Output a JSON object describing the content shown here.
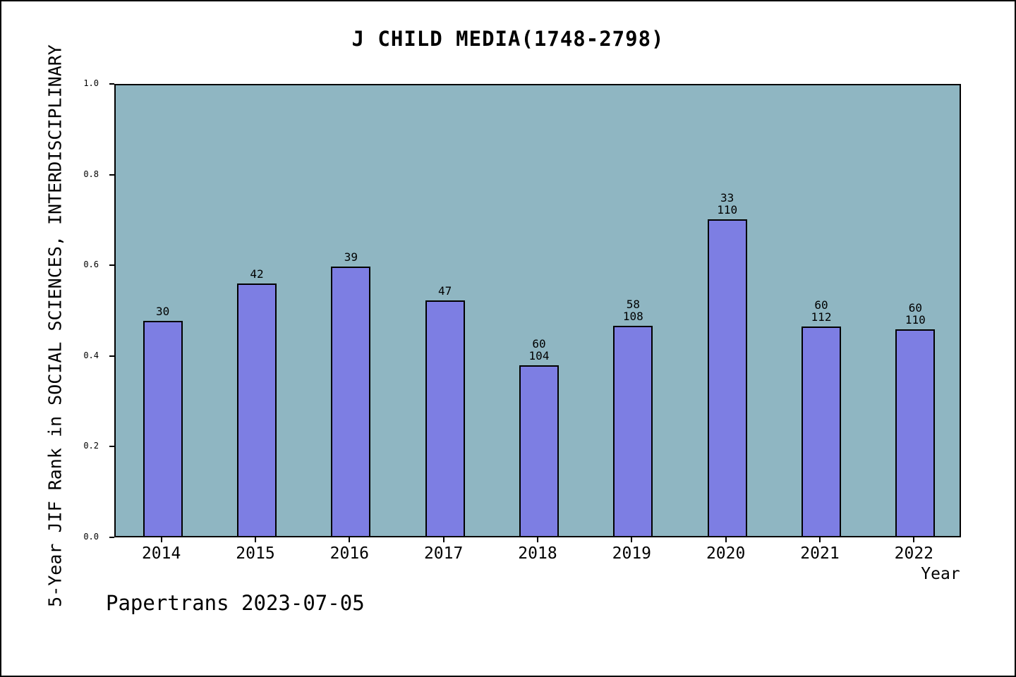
{
  "chart_data": {
    "type": "bar",
    "title": "J CHILD MEDIA(1748-2798)",
    "xlabel": "Year",
    "ylabel": "5-Year JIF Rank in SOCIAL SCIENCES, INTERDISCIPLINARY",
    "footer": "Papertrans 2023-07-05",
    "ylim": [
      0.0,
      1.0
    ],
    "yticks": [
      "0.0",
      "0.2",
      "0.4",
      "0.6",
      "0.8",
      "1.0"
    ],
    "grid": false,
    "legend": "none",
    "categories": [
      "2014",
      "2015",
      "2016",
      "2017",
      "2018",
      "2019",
      "2020",
      "2021",
      "2022"
    ],
    "series": [
      {
        "name": "5-Year JIF Rank (plotted bar height, axis fraction)",
        "values": [
          0.474,
          0.557,
          0.594,
          0.519,
          0.376,
          0.463,
          0.698,
          0.462,
          0.456
        ]
      }
    ],
    "bar_labels": [
      [
        "30"
      ],
      [
        "42"
      ],
      [
        "39"
      ],
      [
        "47"
      ],
      [
        "60",
        "104"
      ],
      [
        "58",
        "108"
      ],
      [
        "33",
        "110"
      ],
      [
        "60",
        "112"
      ],
      [
        "60",
        "110"
      ]
    ],
    "colors": {
      "bar_fill": "#7d7ee3",
      "bar_edge": "#000000",
      "plot_background": "#8fb6c2",
      "page_background": "#ffffff",
      "text": "#000000"
    }
  }
}
